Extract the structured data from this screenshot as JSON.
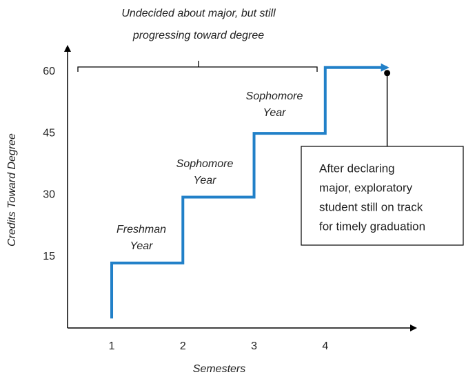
{
  "chart_data": {
    "type": "step",
    "title": [
      "Undecided about major, but still",
      "progressing toward degree"
    ],
    "x_label": "Semesters",
    "y_label": "Credits Toward Degree",
    "xlim": [
      0.38,
      5.29
    ],
    "ylim": [
      -2.3,
      66.5
    ],
    "xticks": [
      1,
      2,
      3,
      4
    ],
    "yticks": [
      15,
      30,
      45,
      60
    ],
    "series": [
      {
        "color": "#2180c8",
        "x": [
          1,
          1,
          2,
          2,
          3,
          3,
          4,
          4,
          4.87
        ],
        "values": [
          0,
          13.5,
          13.5,
          29.5,
          29.5,
          45,
          45,
          61,
          61
        ]
      }
    ],
    "annotations": [
      {
        "lines": [
          "Freshman",
          "Year"
        ]
      },
      {
        "lines": [
          "Sophomore",
          "Year"
        ]
      },
      {
        "lines": [
          "Sophomore",
          "Year"
        ]
      }
    ],
    "callout": [
      "After declaring",
      "major, exploratory",
      "student still on track",
      "for timely graduation"
    ]
  }
}
